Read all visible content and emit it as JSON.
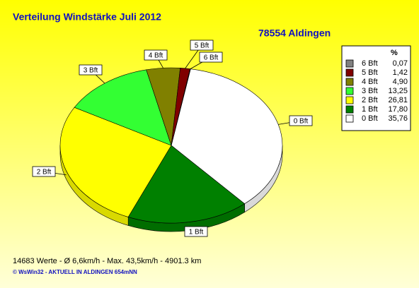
{
  "chart_data": {
    "type": "pie",
    "title": "Verteilung Windstärke  Juli 2012",
    "subtitle": "78554 Aldingen",
    "legend_title": "%",
    "categories": [
      "0 Bft",
      "1 Bft",
      "2 Bft",
      "3 Bft",
      "4 Bft",
      "5 Bft",
      "6 Bft"
    ],
    "values": [
      35.76,
      17.8,
      26.81,
      13.25,
      4.9,
      1.42,
      0.07
    ],
    "value_labels": [
      "35,76",
      "17,80",
      "26,81",
      "13,25",
      "4,90",
      "1,42",
      "0,07"
    ],
    "colors": [
      "#ffffff",
      "#008000",
      "#ffff00",
      "#33ff33",
      "#808000",
      "#800000",
      "#808080"
    ],
    "legend": "right",
    "footer": "14683 Werte   -   Ø 6,6km/h  -  Max. 43,5km/h   -   4901.3 km",
    "credit": "© WsWin32  -  AKTUELL IN ALDINGEN 654mNN"
  }
}
